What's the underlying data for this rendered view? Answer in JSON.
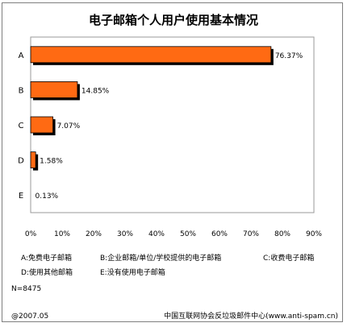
{
  "chart_data": {
    "type": "bar",
    "orientation": "horizontal",
    "title": "电子邮箱个人用户使用基本情况",
    "categories": [
      "A",
      "B",
      "C",
      "D",
      "E"
    ],
    "values": [
      76.37,
      14.85,
      7.07,
      1.58,
      0.13
    ],
    "value_labels": [
      "76.37%",
      "14.85%",
      "7.07%",
      "1.58%",
      "0.13%"
    ],
    "xlim": [
      0,
      90
    ],
    "x_ticks": [
      "0%",
      "10%",
      "20%",
      "30%",
      "40%",
      "50%",
      "60%",
      "70%",
      "80%",
      "90%"
    ],
    "grid": false,
    "bar_color": "#ff6a13",
    "bar_shadow_color": "#000000"
  },
  "legend": {
    "row1": [
      "A:免费电子邮箱",
      "B:企业邮箱/单位/学校提供的电子邮箱",
      "C:收费电子邮箱"
    ],
    "row2": [
      "D:使用其他邮箱",
      "E:没有使用电子邮箱"
    ]
  },
  "sample_size": "N=8475",
  "footer": {
    "date": "@2007.05",
    "source": "中国互联网协会反垃圾邮件中心(www.anti-spam.cn)"
  }
}
